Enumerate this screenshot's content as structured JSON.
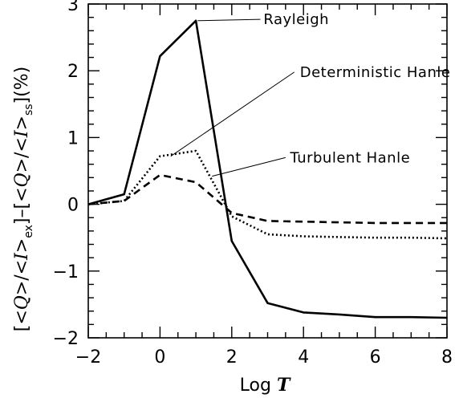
{
  "chart_data": {
    "type": "line",
    "title": "",
    "xlabel": {
      "prefix": "Log ",
      "variable": "T"
    },
    "ylabel": {
      "parts": [
        "[",
        "<Q>",
        "/",
        "<I>",
        "ex",
        "]",
        "–",
        "[",
        "<Q>",
        "/",
        "<I>",
        "ss",
        "]",
        "(%)"
      ]
    },
    "xlim": [
      -2,
      8
    ],
    "ylim": [
      -2,
      3
    ],
    "x_ticks": [
      -2,
      0,
      2,
      4,
      6,
      8
    ],
    "x_tick_labels": [
      "−2",
      "0",
      "2",
      "4",
      "6",
      "8"
    ],
    "y_ticks": [
      -2,
      -1,
      0,
      1,
      2,
      3
    ],
    "y_tick_labels": [
      "−2",
      "−1",
      "0",
      "1",
      "2",
      "3"
    ],
    "grid": false,
    "series": [
      {
        "name": "Rayleigh",
        "style": "solid",
        "color": "#000000",
        "points": [
          [
            -2,
            0.0
          ],
          [
            -1,
            0.15
          ],
          [
            0,
            2.22
          ],
          [
            1,
            2.75
          ],
          [
            2,
            -0.55
          ],
          [
            3,
            -1.48
          ],
          [
            4,
            -1.62
          ],
          [
            5,
            -1.65
          ],
          [
            6,
            -1.69
          ],
          [
            7,
            -1.69
          ],
          [
            8,
            -1.7
          ]
        ],
        "annotation": {
          "text": "Rayleigh",
          "x": 3.8,
          "y": 2.77,
          "leader_to": [
            1.05,
            2.75
          ]
        }
      },
      {
        "name": "Deterministic Hanle",
        "style": "dotted",
        "color": "#000000",
        "points": [
          [
            -2,
            0.0
          ],
          [
            -1,
            0.05
          ],
          [
            0,
            0.72
          ],
          [
            1,
            0.8
          ],
          [
            2,
            -0.18
          ],
          [
            3,
            -0.45
          ],
          [
            4,
            -0.48
          ],
          [
            5,
            -0.49
          ],
          [
            6,
            -0.5
          ],
          [
            7,
            -0.5
          ],
          [
            8,
            -0.51
          ]
        ],
        "annotation": {
          "text": "Deterministic Hanle",
          "x": 6.0,
          "y": 1.98,
          "leader_to": [
            0.3,
            0.72
          ]
        }
      },
      {
        "name": "Turbulent Hanle",
        "style": "dashed",
        "color": "#000000",
        "points": [
          [
            -2,
            0.0
          ],
          [
            -1,
            0.05
          ],
          [
            0,
            0.44
          ],
          [
            1,
            0.33
          ],
          [
            2,
            -0.13
          ],
          [
            3,
            -0.25
          ],
          [
            4,
            -0.26
          ],
          [
            5,
            -0.27
          ],
          [
            6,
            -0.28
          ],
          [
            7,
            -0.28
          ],
          [
            8,
            -0.28
          ]
        ],
        "annotation": {
          "text": "Turbulent Hanle",
          "x": 5.3,
          "y": 0.7,
          "leader_to": [
            1.45,
            0.42
          ]
        }
      }
    ]
  }
}
